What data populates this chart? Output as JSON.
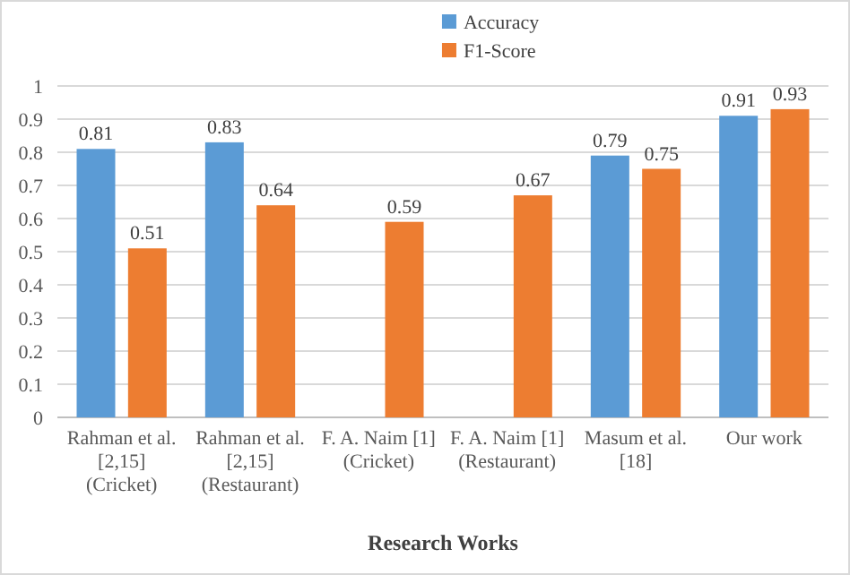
{
  "chart_data": {
    "type": "bar",
    "xlabel": "Research Works",
    "categories": [
      "Rahman et al. [2,15] (Cricket)",
      "Rahman et al. [2,15] (Restaurant)",
      "F. A. Naim [1] (Cricket)",
      "F. A. Naim [1] (Restaurant)",
      "Masum et al. [18]",
      "Our work"
    ],
    "series": [
      {
        "name": "Accuracy",
        "color": "#5b9bd5",
        "values": [
          0.81,
          0.83,
          null,
          null,
          0.79,
          0.91
        ]
      },
      {
        "name": "F1-Score",
        "color": "#ed7d31",
        "values": [
          0.51,
          0.64,
          0.59,
          0.67,
          0.75,
          0.93
        ]
      }
    ],
    "ylim": [
      0,
      1
    ],
    "yticks": [
      0,
      0.1,
      0.2,
      0.3,
      0.4,
      0.5,
      0.6,
      0.7,
      0.8,
      0.9,
      1
    ],
    "grid": "y",
    "legend": "top right",
    "data_labels": true
  }
}
